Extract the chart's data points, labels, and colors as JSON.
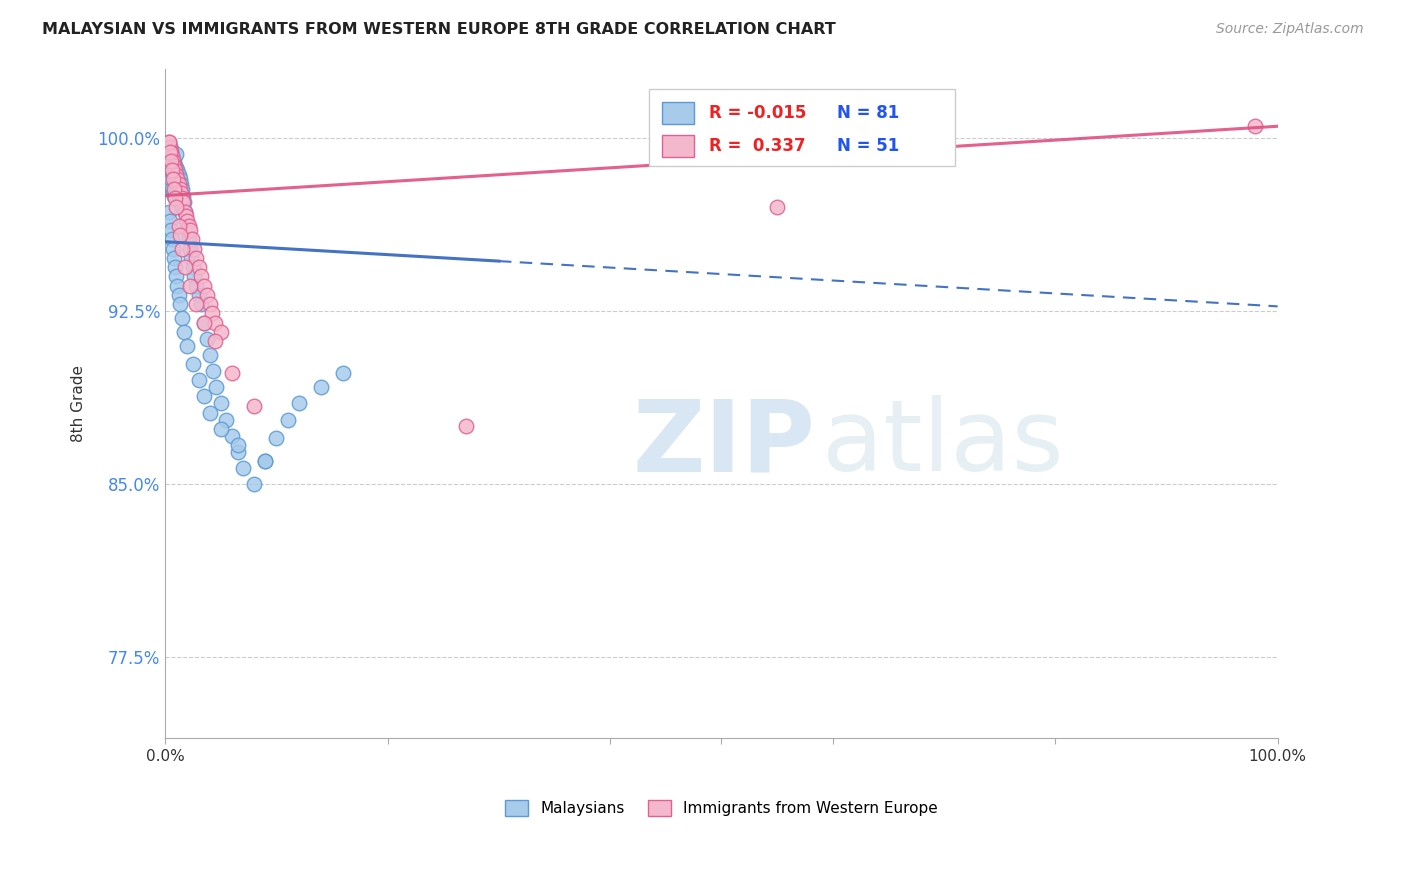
{
  "title": "MALAYSIAN VS IMMIGRANTS FROM WESTERN EUROPE 8TH GRADE CORRELATION CHART",
  "source": "Source: ZipAtlas.com",
  "ylabel": "8th Grade",
  "ylabel_ticks": [
    "100.0%",
    "92.5%",
    "85.0%",
    "77.5%"
  ],
  "ylabel_tick_vals": [
    1.0,
    0.925,
    0.85,
    0.775
  ],
  "xlim": [
    0.0,
    1.0
  ],
  "ylim": [
    0.74,
    1.03
  ],
  "legend_label1": "Malaysians",
  "legend_label2": "Immigrants from Western Europe",
  "r1": -0.015,
  "n1": 81,
  "r2": 0.337,
  "n2": 51,
  "color_blue": "#a8caeb",
  "color_blue_edge": "#5b9bd5",
  "color_pink": "#f4b8cc",
  "color_pink_edge": "#e06090",
  "color_blue_line": "#4472c4",
  "color_pink_line": "#e05080",
  "watermark_zip": "ZIP",
  "watermark_atlas": "atlas",
  "blue_points_x": [
    0.003,
    0.004,
    0.004,
    0.005,
    0.005,
    0.005,
    0.006,
    0.006,
    0.006,
    0.007,
    0.007,
    0.007,
    0.008,
    0.008,
    0.008,
    0.009,
    0.009,
    0.01,
    0.01,
    0.01,
    0.011,
    0.011,
    0.012,
    0.012,
    0.013,
    0.013,
    0.014,
    0.014,
    0.015,
    0.015,
    0.016,
    0.017,
    0.018,
    0.019,
    0.02,
    0.021,
    0.022,
    0.023,
    0.025,
    0.026,
    0.028,
    0.03,
    0.032,
    0.035,
    0.038,
    0.04,
    0.043,
    0.046,
    0.05,
    0.055,
    0.06,
    0.065,
    0.07,
    0.08,
    0.09,
    0.1,
    0.11,
    0.12,
    0.14,
    0.16,
    0.003,
    0.004,
    0.005,
    0.006,
    0.007,
    0.008,
    0.009,
    0.01,
    0.011,
    0.012,
    0.013,
    0.015,
    0.017,
    0.02,
    0.025,
    0.03,
    0.035,
    0.04,
    0.05,
    0.065,
    0.09
  ],
  "blue_points_y": [
    0.99,
    0.985,
    0.98,
    0.995,
    0.988,
    0.982,
    0.992,
    0.986,
    0.978,
    0.991,
    0.984,
    0.976,
    0.99,
    0.983,
    0.975,
    0.988,
    0.981,
    0.993,
    0.987,
    0.979,
    0.986,
    0.978,
    0.984,
    0.976,
    0.982,
    0.974,
    0.98,
    0.972,
    0.978,
    0.97,
    0.975,
    0.972,
    0.968,
    0.964,
    0.96,
    0.956,
    0.952,
    0.948,
    0.944,
    0.94,
    0.936,
    0.932,
    0.928,
    0.92,
    0.913,
    0.906,
    0.899,
    0.892,
    0.885,
    0.878,
    0.871,
    0.864,
    0.857,
    0.85,
    0.86,
    0.87,
    0.878,
    0.885,
    0.892,
    0.898,
    0.968,
    0.964,
    0.96,
    0.956,
    0.952,
    0.948,
    0.944,
    0.94,
    0.936,
    0.932,
    0.928,
    0.922,
    0.916,
    0.91,
    0.902,
    0.895,
    0.888,
    0.881,
    0.874,
    0.867,
    0.86
  ],
  "pink_points_x": [
    0.003,
    0.004,
    0.005,
    0.006,
    0.007,
    0.008,
    0.009,
    0.01,
    0.011,
    0.012,
    0.013,
    0.014,
    0.015,
    0.016,
    0.018,
    0.019,
    0.02,
    0.021,
    0.022,
    0.024,
    0.026,
    0.028,
    0.03,
    0.032,
    0.035,
    0.038,
    0.04,
    0.042,
    0.045,
    0.05,
    0.003,
    0.004,
    0.005,
    0.006,
    0.007,
    0.008,
    0.009,
    0.01,
    0.012,
    0.013,
    0.015,
    0.018,
    0.022,
    0.028,
    0.035,
    0.045,
    0.06,
    0.08,
    0.55,
    0.98,
    0.27
  ],
  "pink_points_y": [
    0.998,
    0.996,
    0.994,
    0.992,
    0.99,
    0.988,
    0.986,
    0.984,
    0.982,
    0.98,
    0.978,
    0.976,
    0.974,
    0.972,
    0.968,
    0.966,
    0.964,
    0.962,
    0.96,
    0.956,
    0.952,
    0.948,
    0.944,
    0.94,
    0.936,
    0.932,
    0.928,
    0.924,
    0.92,
    0.916,
    0.998,
    0.994,
    0.99,
    0.986,
    0.982,
    0.978,
    0.974,
    0.97,
    0.962,
    0.958,
    0.952,
    0.944,
    0.936,
    0.928,
    0.92,
    0.912,
    0.898,
    0.884,
    0.97,
    1.005,
    0.875
  ],
  "blue_line_x_solid_end": 0.3,
  "pink_line_start_y": 0.975,
  "pink_line_end_y": 1.005,
  "blue_line_y_at_0": 0.955,
  "blue_line_y_at_1": 0.927
}
